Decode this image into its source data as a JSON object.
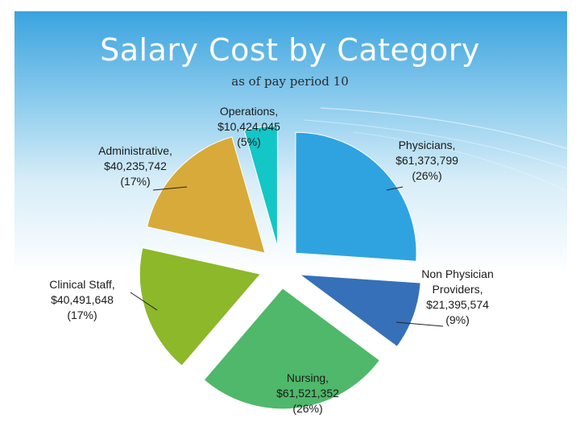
{
  "title": "Salary Cost by Category",
  "subtitle": "as of pay period 10",
  "chart_data": {
    "type": "pie",
    "title": "Salary Cost by Category",
    "subtitle": "as of pay period 10",
    "style": "exploded",
    "slices": [
      {
        "label": "Physicians",
        "value": 61373799,
        "value_text": "$61,373,799",
        "percent": 26,
        "percent_text": "(26%)",
        "color": "#2fa3e0"
      },
      {
        "label": "Non Physician Providers",
        "value": 21395574,
        "value_text": "$21,395,574",
        "percent": 9,
        "percent_text": "(9%)",
        "color": "#3670b8"
      },
      {
        "label": "Nursing",
        "value": 61521352,
        "value_text": "$61,521,352",
        "percent": 26,
        "percent_text": "(26%)",
        "color": "#4fb86a"
      },
      {
        "label": "Clinical Staff",
        "value": 40491648,
        "value_text": "$40,491,648",
        "percent": 17,
        "percent_text": "(17%)",
        "color": "#8cb82a"
      },
      {
        "label": "Administrative",
        "value": 40235742,
        "value_text": "$40,235,742",
        "percent": 17,
        "percent_text": "(17%)",
        "color": "#d8aa3a"
      },
      {
        "label": "Operations",
        "value": 10424045,
        "value_text": "$10,424,045",
        "percent": 5,
        "percent_text": "(5%)",
        "color": "#13c6c8"
      }
    ]
  }
}
